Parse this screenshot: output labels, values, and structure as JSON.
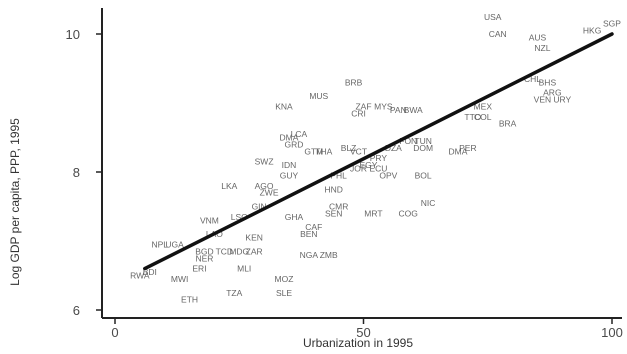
{
  "chart_data": {
    "type": "scatter",
    "title": "",
    "xlabel": "Urbanization in 1995",
    "ylabel": "Log GDP per capita, PPP, 1995",
    "xlim": [
      0,
      100
    ],
    "ylim": [
      6,
      10
    ],
    "x_ticks": [
      0,
      50,
      100
    ],
    "y_ticks": [
      6,
      8,
      10
    ],
    "grid": false,
    "legend": "none",
    "fit_line": {
      "x": [
        6,
        100
      ],
      "y": [
        6.6,
        10.0
      ],
      "color": "#111111"
    },
    "colors": {
      "label": "#666666",
      "axis": "#222222",
      "fit": "#111111"
    },
    "points": [
      {
        "label": "USA",
        "x": 76,
        "y": 10.25
      },
      {
        "label": "CAN",
        "x": 77,
        "y": 10.0
      },
      {
        "label": "HKG",
        "x": 96,
        "y": 10.05
      },
      {
        "label": "SGP",
        "x": 100,
        "y": 10.15
      },
      {
        "label": "AUS",
        "x": 85,
        "y": 9.95
      },
      {
        "label": "NZL",
        "x": 86,
        "y": 9.8
      },
      {
        "label": "CHL",
        "x": 84,
        "y": 9.35
      },
      {
        "label": "BHS",
        "x": 87,
        "y": 9.3
      },
      {
        "label": "ARG",
        "x": 88,
        "y": 9.15
      },
      {
        "label": "VEN",
        "x": 86,
        "y": 9.05
      },
      {
        "label": "URY",
        "x": 90,
        "y": 9.05
      },
      {
        "label": "MEX",
        "x": 74,
        "y": 8.95
      },
      {
        "label": "TTO",
        "x": 72,
        "y": 8.8
      },
      {
        "label": "COL",
        "x": 74,
        "y": 8.8
      },
      {
        "label": "BRA",
        "x": 79,
        "y": 8.7
      },
      {
        "label": "BRB",
        "x": 48,
        "y": 9.3
      },
      {
        "label": "MUS",
        "x": 41,
        "y": 9.1
      },
      {
        "label": "KNA",
        "x": 34,
        "y": 8.95
      },
      {
        "label": "ZAF",
        "x": 50,
        "y": 8.95
      },
      {
        "label": "MYS",
        "x": 54,
        "y": 8.95
      },
      {
        "label": "CRI",
        "x": 49,
        "y": 8.85
      },
      {
        "label": "PAN",
        "x": 57,
        "y": 8.9
      },
      {
        "label": "BWA",
        "x": 60,
        "y": 8.9
      },
      {
        "label": "LCA",
        "x": 37,
        "y": 8.55
      },
      {
        "label": "DMA",
        "x": 35,
        "y": 8.5
      },
      {
        "label": "GRD",
        "x": 36,
        "y": 8.4
      },
      {
        "label": "GTM",
        "x": 40,
        "y": 8.3
      },
      {
        "label": "THA",
        "x": 42,
        "y": 8.3
      },
      {
        "label": "BLZ",
        "x": 47,
        "y": 8.35
      },
      {
        "label": "VCT",
        "x": 49,
        "y": 8.3
      },
      {
        "label": "DZA",
        "x": 56,
        "y": 8.35
      },
      {
        "label": "TUN",
        "x": 62,
        "y": 8.45
      },
      {
        "label": "FON",
        "x": 59,
        "y": 8.45
      },
      {
        "label": "DOM",
        "x": 62,
        "y": 8.35
      },
      {
        "label": "PER",
        "x": 71,
        "y": 8.35
      },
      {
        "label": "DMA",
        "x": 69,
        "y": 8.3
      },
      {
        "label": "PRY",
        "x": 53,
        "y": 8.2
      },
      {
        "label": "EGY",
        "x": 51,
        "y": 8.1
      },
      {
        "label": "JOR",
        "x": 49,
        "y": 8.05
      },
      {
        "label": "ECU",
        "x": 53,
        "y": 8.05
      },
      {
        "label": "OPV",
        "x": 55,
        "y": 7.95
      },
      {
        "label": "SWZ",
        "x": 30,
        "y": 8.15
      },
      {
        "label": "IDN",
        "x": 35,
        "y": 8.1
      },
      {
        "label": "GUY",
        "x": 35,
        "y": 7.95
      },
      {
        "label": "PHL",
        "x": 45,
        "y": 7.95
      },
      {
        "label": "BOL",
        "x": 62,
        "y": 7.95
      },
      {
        "label": "LKA",
        "x": 23,
        "y": 7.8
      },
      {
        "label": "AGO",
        "x": 30,
        "y": 7.8
      },
      {
        "label": "ZWE",
        "x": 31,
        "y": 7.7
      },
      {
        "label": "HND",
        "x": 44,
        "y": 7.75
      },
      {
        "label": "GIN",
        "x": 29,
        "y": 7.5
      },
      {
        "label": "CMR",
        "x": 45,
        "y": 7.5
      },
      {
        "label": "NIC",
        "x": 63,
        "y": 7.55
      },
      {
        "label": "SEN",
        "x": 44,
        "y": 7.4
      },
      {
        "label": "MRT",
        "x": 52,
        "y": 7.4
      },
      {
        "label": "COG",
        "x": 59,
        "y": 7.4
      },
      {
        "label": "GHA",
        "x": 36,
        "y": 7.35
      },
      {
        "label": "VNM",
        "x": 19,
        "y": 7.3
      },
      {
        "label": "LSO",
        "x": 25,
        "y": 7.35
      },
      {
        "label": "CAF",
        "x": 40,
        "y": 7.2
      },
      {
        "label": "BEN",
        "x": 39,
        "y": 7.1
      },
      {
        "label": "KEN",
        "x": 28,
        "y": 7.05
      },
      {
        "label": "LAO",
        "x": 20,
        "y": 7.1
      },
      {
        "label": "NPL",
        "x": 9,
        "y": 6.95
      },
      {
        "label": "UGA",
        "x": 12,
        "y": 6.95
      },
      {
        "label": "BGD",
        "x": 18,
        "y": 6.85
      },
      {
        "label": "TCD",
        "x": 22,
        "y": 6.85
      },
      {
        "label": "MDG",
        "x": 25,
        "y": 6.85
      },
      {
        "label": "ZAR",
        "x": 28,
        "y": 6.85
      },
      {
        "label": "NER",
        "x": 18,
        "y": 6.75
      },
      {
        "label": "NGA",
        "x": 39,
        "y": 6.8
      },
      {
        "label": "ZMB",
        "x": 43,
        "y": 6.8
      },
      {
        "label": "ERI",
        "x": 17,
        "y": 6.6
      },
      {
        "label": "MLI",
        "x": 26,
        "y": 6.6
      },
      {
        "label": "BDI",
        "x": 7,
        "y": 6.55
      },
      {
        "label": "RWA",
        "x": 5,
        "y": 6.5
      },
      {
        "label": "MWI",
        "x": 13,
        "y": 6.45
      },
      {
        "label": "MOZ",
        "x": 34,
        "y": 6.45
      },
      {
        "label": "TZA",
        "x": 24,
        "y": 6.25
      },
      {
        "label": "SLE",
        "x": 34,
        "y": 6.25
      },
      {
        "label": "ETH",
        "x": 15,
        "y": 6.15
      }
    ]
  }
}
